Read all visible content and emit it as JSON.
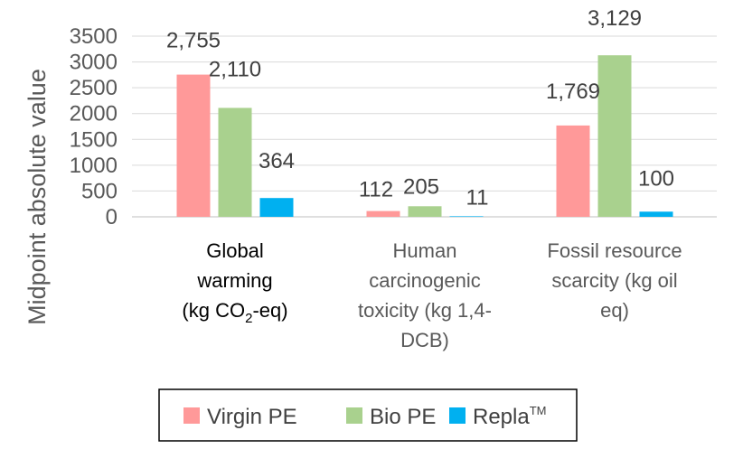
{
  "chart_data": {
    "type": "bar",
    "ylabel": "Midpoint absolute value",
    "ylim": [
      0,
      3500
    ],
    "yticks": [
      "0",
      "500",
      "1000",
      "1500",
      "2000",
      "2500",
      "3000",
      "3500"
    ],
    "grid": true,
    "legend_position": "bottom",
    "categories": [
      [
        "Global",
        "warming",
        "(kg CO2-eq)"
      ],
      [
        "Human",
        "carcinogenic",
        "toxicity (kg 1,4-",
        "DCB)"
      ],
      [
        "Fossil resource",
        "scarcity (kg oil",
        "eq)"
      ]
    ],
    "series": [
      {
        "name": "Virgin PE",
        "color": "#FF9999",
        "values": [
          2755,
          112,
          1769
        ],
        "labels": [
          "2,755",
          "112",
          "1,769"
        ]
      },
      {
        "name": "Bio PE",
        "color": "#A9D18E",
        "values": [
          2110,
          205,
          3129
        ],
        "labels": [
          "2,110",
          "205",
          "3,129"
        ]
      },
      {
        "name": "Repla",
        "name_suffix": "TM",
        "color": "#00B0F0",
        "values": [
          364,
          11,
          100
        ],
        "labels": [
          "364",
          "11",
          "100"
        ]
      }
    ]
  }
}
